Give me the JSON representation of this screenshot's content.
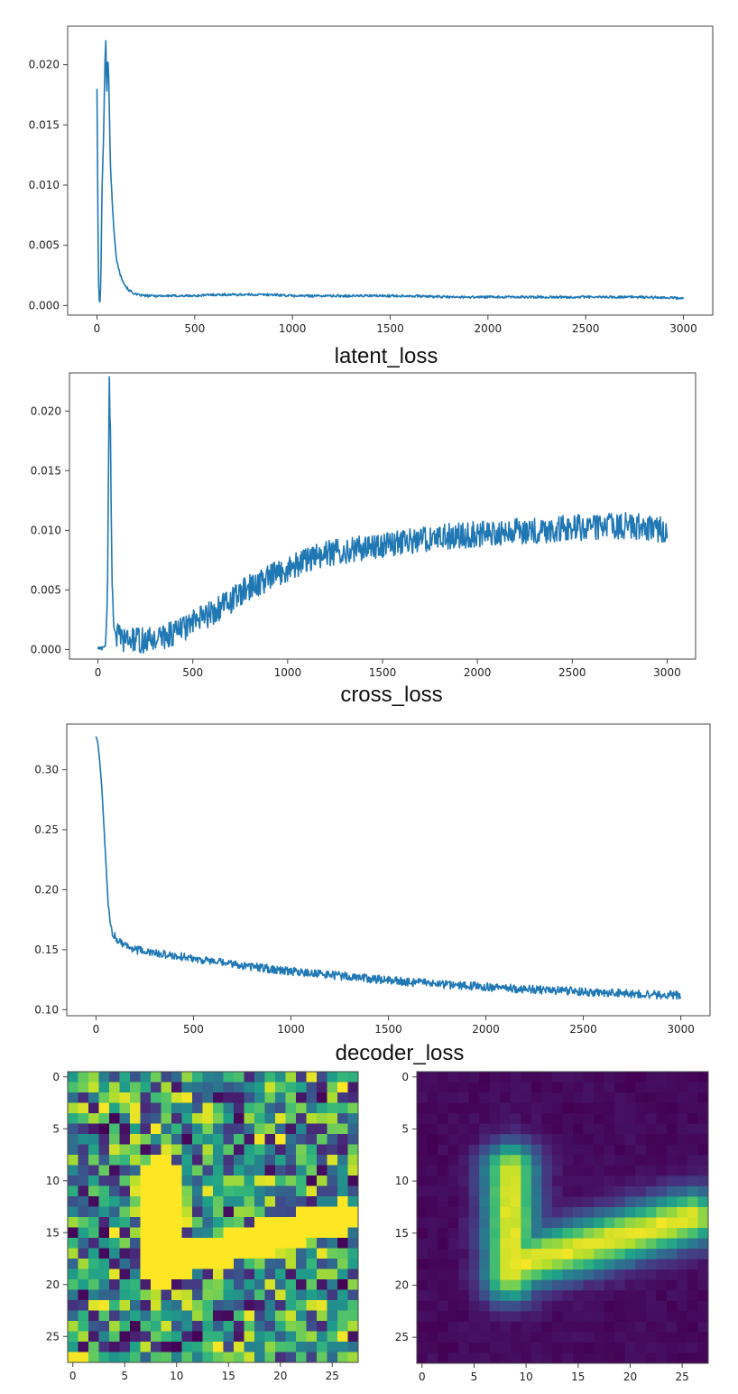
{
  "colors": {
    "line": "#1f77b4",
    "frame": "#444444",
    "heatmap": "viridis"
  },
  "chart_data": [
    {
      "type": "line",
      "title": "latent_loss",
      "xlim": [
        -150,
        3150
      ],
      "ylim": [
        -0.0008,
        0.0232
      ],
      "xticks": [
        0,
        500,
        1000,
        1500,
        2000,
        2500,
        3000
      ],
      "yticks": [
        0.0,
        0.005,
        0.01,
        0.015,
        0.02
      ],
      "ytick_labels": [
        "0.000",
        "0.005",
        "0.010",
        "0.015",
        "0.020"
      ],
      "grid": false,
      "series": [
        {
          "x": [
            0,
            5,
            10,
            15,
            20,
            25,
            30,
            35,
            40,
            45,
            50,
            55,
            60,
            65,
            70,
            80,
            90,
            100,
            120,
            140,
            160,
            200,
            250,
            300,
            400,
            500,
            600,
            700,
            800,
            900,
            1000,
            1200,
            1400,
            1600,
            1800,
            2000,
            2200,
            2400,
            2600,
            2800,
            3000
          ],
          "y": [
            0.018,
            0.006,
            0.0005,
            0.0003,
            0.002,
            0.009,
            0.012,
            0.015,
            0.02,
            0.022,
            0.017,
            0.021,
            0.019,
            0.0145,
            0.011,
            0.008,
            0.0055,
            0.0038,
            0.0025,
            0.0018,
            0.0013,
            0.0009,
            0.0008,
            0.0008,
            0.0008,
            0.0008,
            0.0009,
            0.0009,
            0.0009,
            0.0009,
            0.0008,
            0.0008,
            0.0008,
            0.0008,
            0.0007,
            0.0007,
            0.0007,
            0.0007,
            0.0007,
            0.0007,
            0.0006
          ],
          "noise": 0.0001
        }
      ]
    },
    {
      "type": "line",
      "title": "cross_loss",
      "xlim": [
        -150,
        3150
      ],
      "ylim": [
        -0.0008,
        0.0232
      ],
      "xticks": [
        0,
        500,
        1000,
        1500,
        2000,
        2500,
        3000
      ],
      "yticks": [
        0.0,
        0.005,
        0.01,
        0.015,
        0.02
      ],
      "ytick_labels": [
        "0.000",
        "0.005",
        "0.010",
        "0.015",
        "0.020"
      ],
      "grid": false,
      "series": [
        {
          "x": [
            0,
            20,
            40,
            50,
            55,
            60,
            65,
            70,
            75,
            80,
            90,
            100,
            120,
            150,
            200,
            250,
            300,
            400,
            500,
            600,
            700,
            800,
            900,
            1000,
            1100,
            1200,
            1300,
            1400,
            1500,
            1600,
            1800,
            2000,
            2200,
            2400,
            2600,
            2800,
            3000
          ],
          "y": [
            0.0001,
            0.0001,
            0.0004,
            0.004,
            0.014,
            0.022,
            0.019,
            0.012,
            0.006,
            0.003,
            0.0017,
            0.0012,
            0.0009,
            0.0008,
            0.0008,
            0.0007,
            0.0009,
            0.0014,
            0.0022,
            0.0031,
            0.0041,
            0.0052,
            0.006,
            0.0068,
            0.0075,
            0.008,
            0.0083,
            0.0085,
            0.0088,
            0.009,
            0.0094,
            0.0097,
            0.0099,
            0.0101,
            0.0103,
            0.0104,
            0.01
          ],
          "noise": 0.0011
        }
      ]
    },
    {
      "type": "line",
      "title": "decoder_loss",
      "xlim": [
        -150,
        3150
      ],
      "ylim": [
        0.095,
        0.338
      ],
      "xticks": [
        0,
        500,
        1000,
        1500,
        2000,
        2500,
        3000
      ],
      "yticks": [
        0.1,
        0.15,
        0.2,
        0.25,
        0.3
      ],
      "ytick_labels": [
        "0.10",
        "0.15",
        "0.20",
        "0.25",
        "0.30"
      ],
      "grid": false,
      "series": [
        {
          "x": [
            0,
            10,
            20,
            30,
            40,
            50,
            60,
            70,
            80,
            100,
            150,
            200,
            300,
            400,
            500,
            600,
            800,
            1000,
            1200,
            1400,
            1600,
            1800,
            2000,
            2200,
            2400,
            2600,
            2800,
            3000
          ],
          "y": [
            0.328,
            0.322,
            0.305,
            0.285,
            0.255,
            0.225,
            0.195,
            0.175,
            0.165,
            0.16,
            0.154,
            0.15,
            0.147,
            0.145,
            0.143,
            0.14,
            0.136,
            0.132,
            0.129,
            0.126,
            0.123,
            0.121,
            0.119,
            0.117,
            0.116,
            0.114,
            0.113,
            0.112
          ],
          "noise": 0.0035
        }
      ]
    },
    {
      "type": "heatmap",
      "title": "",
      "rows": 28,
      "cols": 28,
      "xticks": [
        0,
        5,
        10,
        15,
        20,
        25
      ],
      "yticks": [
        0,
        5,
        10,
        15,
        20,
        25
      ],
      "colormap": "viridis",
      "pattern": "random noise with a saturated L-shaped stroke"
    },
    {
      "type": "heatmap",
      "title": "",
      "rows": 28,
      "cols": 28,
      "xticks": [
        0,
        5,
        10,
        15,
        20,
        25
      ],
      "yticks": [
        0,
        5,
        10,
        15,
        20,
        25
      ],
      "colormap": "viridis",
      "pattern": "smooth blurred L-shaped stroke on a dark background"
    }
  ]
}
